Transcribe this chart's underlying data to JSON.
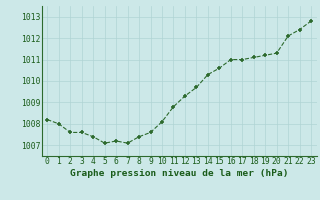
{
  "x": [
    0,
    1,
    2,
    3,
    4,
    5,
    6,
    7,
    8,
    9,
    10,
    11,
    12,
    13,
    14,
    15,
    16,
    17,
    18,
    19,
    20,
    21,
    22,
    23
  ],
  "y": [
    1008.2,
    1008.0,
    1007.6,
    1007.6,
    1007.4,
    1007.1,
    1007.2,
    1007.1,
    1007.4,
    1007.6,
    1008.1,
    1008.8,
    1009.3,
    1009.7,
    1010.3,
    1010.6,
    1011.0,
    1011.0,
    1011.1,
    1011.2,
    1011.3,
    1012.1,
    1012.4,
    1012.8
  ],
  "title": "Graphe pression niveau de la mer (hPa)",
  "xlim": [
    -0.5,
    23.5
  ],
  "ylim": [
    1006.5,
    1013.5
  ],
  "yticks": [
    1007,
    1008,
    1009,
    1010,
    1011,
    1012,
    1013
  ],
  "xticks": [
    0,
    1,
    2,
    3,
    4,
    5,
    6,
    7,
    8,
    9,
    10,
    11,
    12,
    13,
    14,
    15,
    16,
    17,
    18,
    19,
    20,
    21,
    22,
    23
  ],
  "line_color": "#2d6a2d",
  "marker_color": "#2d6a2d",
  "bg_color": "#cce8e8",
  "grid_color": "#b0d4d4",
  "title_color": "#1a5c1a",
  "title_fontsize": 6.8,
  "tick_fontsize": 5.8,
  "tick_color": "#1a5c1a"
}
